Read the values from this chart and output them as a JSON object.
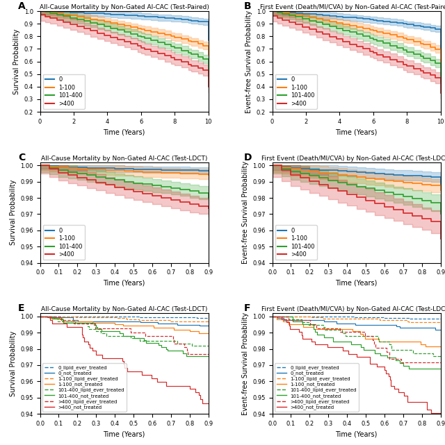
{
  "titles": {
    "A": "All-Cause Mortality by Non-Gated AI-CAC (Test-Paired)",
    "B": "First Event (Death/MI/CVA) by Non-Gated AI-CAC (Test-Paired)",
    "C": "All-Cause Mortality by Non-Gated AI-CAC (Test-LDCT)",
    "D": "First Event (Death/MI/CVA) by Non-Gated AI-CAC (Test-LDCT)",
    "E": "All-Cause Mortality by Non-Gated AI-CAC (Test-LDCT)",
    "F": "First Event (Death/MI/CVA) by Non-Gated AI-CAC (Test-LDCT)"
  },
  "colors": {
    "0": "#1f77b4",
    "1-100": "#ff7f0e",
    "101-400": "#2ca02c",
    ">400": "#d62728"
  },
  "panel_AB": {
    "ylabel_A": "Survival Probability",
    "ylabel_B": "Event-free Survival Probability",
    "xlabel": "Time (Years)",
    "xlim": [
      0,
      10
    ],
    "ylim": [
      0.2,
      1.0
    ],
    "yticks": [
      0.2,
      0.3,
      0.4,
      0.5,
      0.6,
      0.7,
      0.8,
      0.9,
      1.0
    ],
    "xticks": [
      0,
      2,
      4,
      6,
      8,
      10
    ]
  },
  "panel_CD": {
    "ylabel_C": "Survival Probability",
    "ylabel_D": "Event-free Survival Probability",
    "xlabel": "Time (Years)",
    "xlim": [
      0.0,
      0.9
    ],
    "ylim": [
      0.94,
      1.002
    ],
    "yticks": [
      0.94,
      0.95,
      0.96,
      0.97,
      0.98,
      0.99,
      1.0
    ],
    "xticks": [
      0.0,
      0.1,
      0.2,
      0.3,
      0.4,
      0.5,
      0.6,
      0.7,
      0.8,
      0.9
    ]
  },
  "panel_EF": {
    "ylabel_E": "Survival Probability",
    "ylabel_F": "Event-free Survival Probability",
    "xlabel": "Time (Years)",
    "xlim": [
      0.0,
      0.9
    ],
    "ylim": [
      0.94,
      1.002
    ],
    "yticks": [
      0.94,
      0.95,
      0.96,
      0.97,
      0.98,
      0.99,
      1.0
    ],
    "xticks": [
      0.0,
      0.1,
      0.2,
      0.3,
      0.4,
      0.5,
      0.6,
      0.7,
      0.8,
      0.9
    ]
  },
  "legend_labels_AB": [
    "0",
    "1-100",
    "101-400",
    ">400"
  ],
  "legend_labels_EF": [
    "0_lipid_ever_treated",
    "0_not_treated",
    "1-100_lipid_ever_treated",
    "1-100_not_treated",
    "101-400_lipid_ever_treated",
    "101-400_not_treated",
    ">400_lipid_ever_treated",
    ">400_not_treated"
  ],
  "alpha_ci": 0.25,
  "lw": 1.2
}
